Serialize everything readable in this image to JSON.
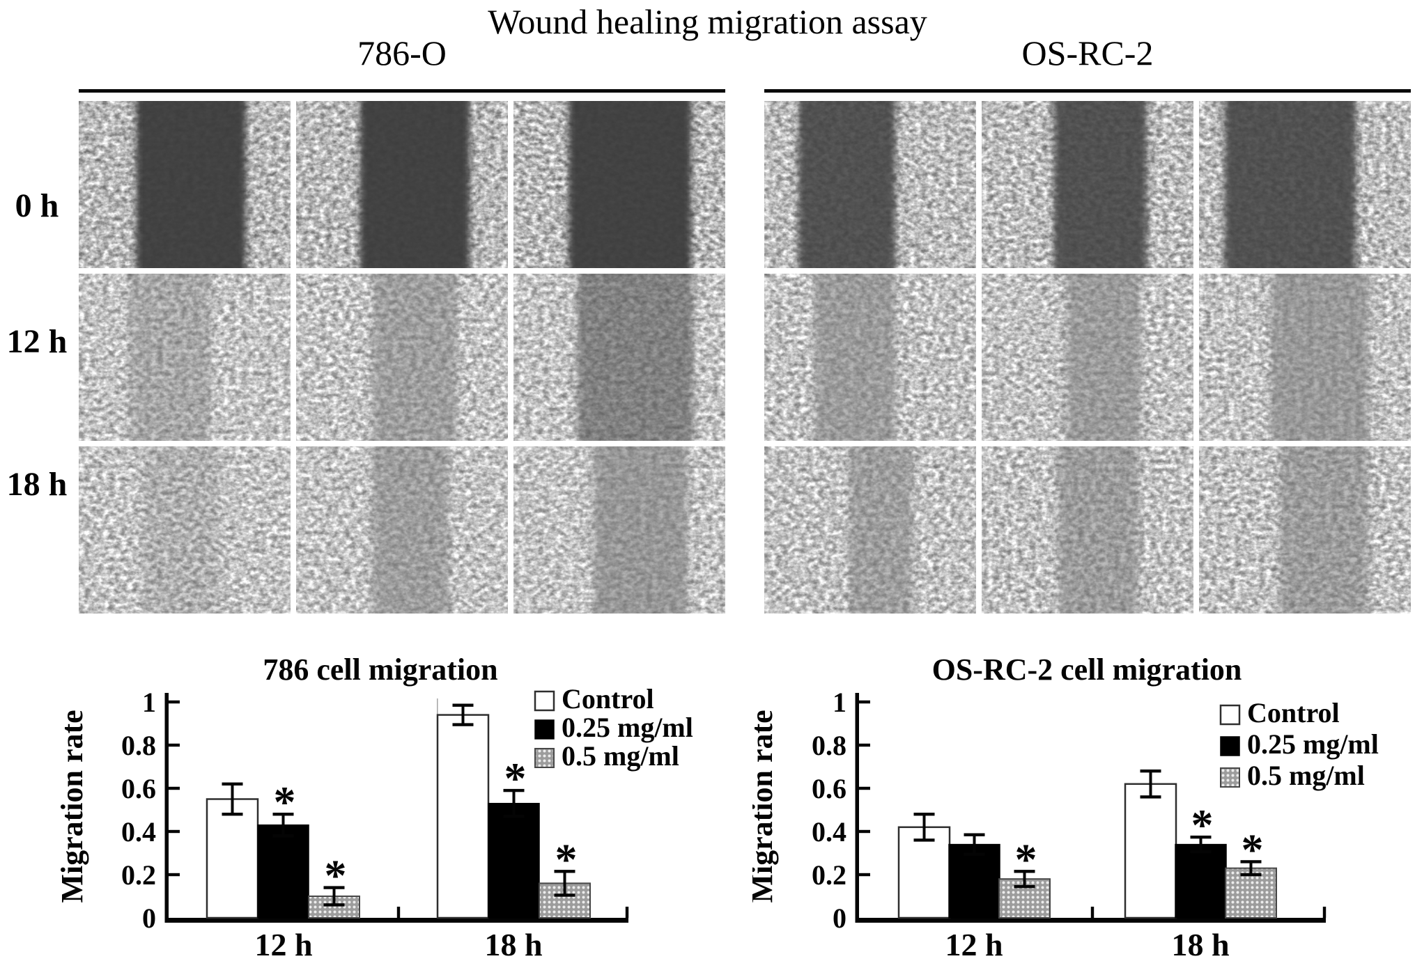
{
  "figure": {
    "title": "Wound healing migration assay"
  },
  "groups": [
    {
      "name": "786-O"
    },
    {
      "name": "OS-RC-2"
    }
  ],
  "row_labels": [
    "0 h",
    "12 h",
    "18 h"
  ],
  "micrographs": {
    "left": {
      "group": "786-O",
      "rows": [
        {
          "time": "0 h",
          "style": {
            "base": "#474747",
            "gap": "#3b3b3b",
            "dark": 0.1
          },
          "panels": [
            {
              "gap_left": 0.27,
              "gap_width": 0.52,
              "gap_opacity": 0.94
            },
            {
              "gap_left": 0.3,
              "gap_width": 0.52,
              "gap_opacity": 0.94
            },
            {
              "gap_left": 0.26,
              "gap_width": 0.58,
              "gap_opacity": 0.94
            }
          ]
        },
        {
          "time": "12 h",
          "style": {
            "base": "#575757",
            "gap": "#7d7d7d",
            "dark": 0.16
          },
          "panels": [
            {
              "gap_left": 0.24,
              "gap_width": 0.38,
              "gap_opacity": 0.4
            },
            {
              "gap_left": 0.36,
              "gap_width": 0.4,
              "gap_opacity": 0.52
            },
            {
              "gap_left": 0.3,
              "gap_width": 0.55,
              "gap_opacity": 0.6,
              "gap_color": "#565656"
            }
          ]
        },
        {
          "time": "18 h",
          "style": {
            "base": "#555555",
            "gap": "#787878",
            "dark": 0.16
          },
          "panels": [
            {
              "gap_left": 0.3,
              "gap_width": 0.36,
              "gap_opacity": 0.25
            },
            {
              "gap_left": 0.36,
              "gap_width": 0.36,
              "gap_opacity": 0.5
            },
            {
              "gap_left": 0.38,
              "gap_width": 0.44,
              "gap_opacity": 0.58
            }
          ]
        }
      ]
    },
    "right": {
      "group": "OS-RC-2",
      "rows": [
        {
          "time": "0 h",
          "style": {
            "base": "#4a4a4a",
            "gap": "#404040",
            "dark": 0.12
          },
          "panels": [
            {
              "gap_left": 0.16,
              "gap_width": 0.46,
              "gap_opacity": 0.86
            },
            {
              "gap_left": 0.34,
              "gap_width": 0.44,
              "gap_opacity": 0.86
            },
            {
              "gap_left": 0.12,
              "gap_width": 0.62,
              "gap_opacity": 0.86
            }
          ]
        },
        {
          "time": "12 h",
          "style": {
            "base": "#585858",
            "gap": "#7b7b7b",
            "dark": 0.15
          },
          "panels": [
            {
              "gap_left": 0.24,
              "gap_width": 0.38,
              "gap_opacity": 0.55
            },
            {
              "gap_left": 0.4,
              "gap_width": 0.35,
              "gap_opacity": 0.55
            },
            {
              "gap_left": 0.34,
              "gap_width": 0.46,
              "gap_opacity": 0.58
            }
          ]
        },
        {
          "time": "18 h",
          "style": {
            "base": "#565656",
            "gap": "#787878",
            "dark": 0.15
          },
          "panels": [
            {
              "gap_left": 0.4,
              "gap_width": 0.3,
              "gap_opacity": 0.48
            },
            {
              "gap_left": 0.36,
              "gap_width": 0.38,
              "gap_opacity": 0.5
            },
            {
              "gap_left": 0.38,
              "gap_width": 0.42,
              "gap_opacity": 0.5
            }
          ]
        }
      ]
    }
  },
  "chart_data": [
    {
      "type": "bar",
      "title": "786 cell migration",
      "xlabel": "",
      "ylabel": "Migration rate",
      "ylim": [
        0,
        1
      ],
      "yticks": [
        0,
        0.2,
        0.4,
        0.6,
        0.8,
        1
      ],
      "categories": [
        "12 h",
        "18 h"
      ],
      "legend_position": "top-right",
      "significance_marker": "*",
      "grid": false,
      "series": [
        {
          "name": "Control",
          "style": "white",
          "values": [
            0.55,
            0.94
          ],
          "errors": [
            0.07,
            0.045
          ],
          "significant": [
            false,
            false
          ]
        },
        {
          "name": "0.25 mg/ml",
          "style": "black",
          "values": [
            0.43,
            0.53
          ],
          "errors": [
            0.05,
            0.06
          ],
          "significant": [
            true,
            true
          ]
        },
        {
          "name": "0.5 mg/ml",
          "style": "dotted",
          "values": [
            0.1,
            0.16
          ],
          "errors": [
            0.04,
            0.055
          ],
          "significant": [
            true,
            true
          ]
        }
      ]
    },
    {
      "type": "bar",
      "title": "OS-RC-2 cell migration",
      "xlabel": "",
      "ylabel": "Migration rate",
      "ylim": [
        0,
        1
      ],
      "yticks": [
        0,
        0.2,
        0.4,
        0.6,
        0.8,
        1
      ],
      "categories": [
        "12 h",
        "18 h"
      ],
      "legend_position": "top-right",
      "significance_marker": "*",
      "grid": false,
      "series": [
        {
          "name": "Control",
          "style": "white",
          "values": [
            0.42,
            0.62
          ],
          "errors": [
            0.06,
            0.06
          ],
          "significant": [
            false,
            false
          ]
        },
        {
          "name": "0.25 mg/ml",
          "style": "black",
          "values": [
            0.34,
            0.34
          ],
          "errors": [
            0.045,
            0.034
          ],
          "significant": [
            false,
            true
          ]
        },
        {
          "name": "0.5 mg/ml",
          "style": "dotted",
          "values": [
            0.18,
            0.23
          ],
          "errors": [
            0.035,
            0.03
          ],
          "significant": [
            true,
            true
          ]
        }
      ]
    }
  ],
  "colors": {
    "ink": "#040404",
    "bar_white": "#ffffff",
    "bar_black": "#000000",
    "bar_dotted_base": "#9c9c9c",
    "bar_dotted_dot": "#ececec"
  }
}
